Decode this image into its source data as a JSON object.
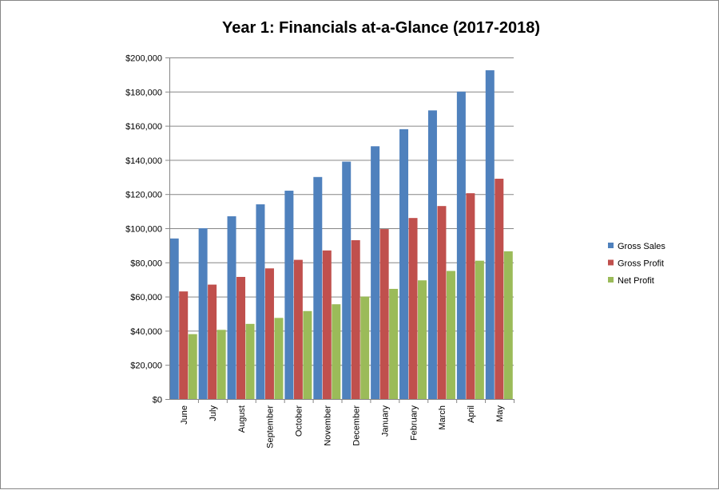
{
  "chart_data": {
    "type": "bar",
    "title": "Year 1: Financials at-a-Glance (2017-2018)",
    "xlabel": "",
    "ylabel": "",
    "ylim": [
      0,
      200000
    ],
    "yticks": [
      0,
      20000,
      40000,
      60000,
      80000,
      100000,
      120000,
      140000,
      160000,
      180000,
      200000
    ],
    "ytick_labels": [
      "$0",
      "$20,000",
      "$40,000",
      "$60,000",
      "$80,000",
      "$100,000",
      "$120,000",
      "$140,000",
      "$160,000",
      "$180,000",
      "$200,000"
    ],
    "grid": true,
    "legend_position": "right",
    "categories": [
      "June",
      "July",
      "August",
      "September",
      "October",
      "November",
      "December",
      "January",
      "February",
      "March",
      "April",
      "May"
    ],
    "series": [
      {
        "name": "Gross Sales",
        "color": "#4F81BD",
        "values": [
          94000,
          100000,
          107000,
          114000,
          122000,
          130000,
          139000,
          148000,
          158000,
          169000,
          180000,
          192500
        ]
      },
      {
        "name": "Gross Profit",
        "color": "#C0504D",
        "values": [
          63000,
          67000,
          71500,
          76500,
          81500,
          87000,
          93000,
          99500,
          106000,
          113000,
          120500,
          129000
        ]
      },
      {
        "name": "Net Profit",
        "color": "#9BBB59",
        "values": [
          38000,
          40500,
          44000,
          47500,
          51500,
          55500,
          60000,
          64500,
          69500,
          75000,
          81000,
          86500
        ]
      }
    ]
  }
}
